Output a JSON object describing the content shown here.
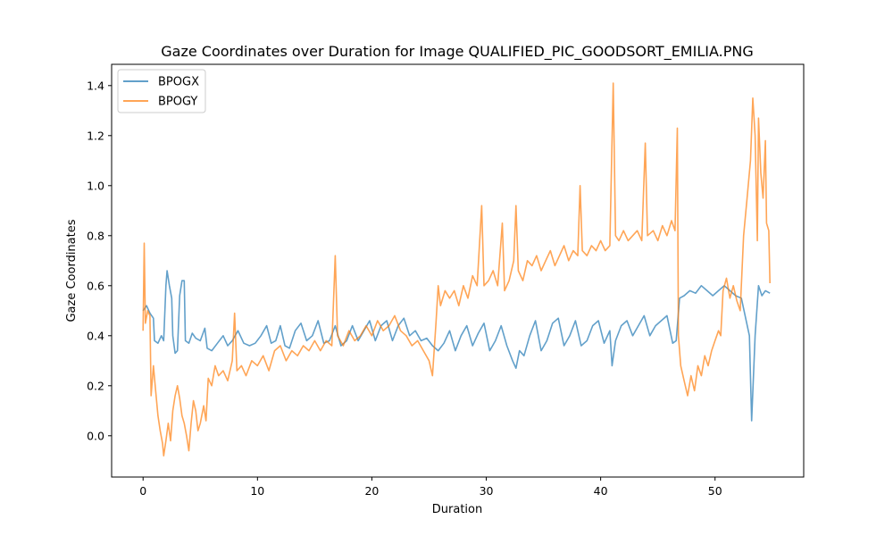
{
  "chart_data": {
    "type": "line",
    "title": "Gaze Coordinates over Duration for Image QUALIFIED_PIC_GOODSORT_EMILIA.PNG",
    "xlabel": "Duration",
    "ylabel": "Gaze Coordinates",
    "xlim": [
      -2.75,
      57.75
    ],
    "ylim": [
      -0.165,
      1.485
    ],
    "xticks": [
      0,
      10,
      20,
      30,
      40,
      50
    ],
    "yticks": [
      0.0,
      0.2,
      0.4,
      0.6,
      0.8,
      1.0,
      1.2,
      1.4
    ],
    "xtick_labels": [
      "0",
      "10",
      "20",
      "30",
      "40",
      "50"
    ],
    "ytick_labels": [
      "0.0",
      "0.2",
      "0.4",
      "0.6",
      "0.8",
      "1.0",
      "1.2",
      "1.4"
    ],
    "grid": false,
    "legend": "top-left",
    "series": [
      {
        "name": "BPOGX",
        "color": "#1f77b4",
        "points": [
          [
            0,
            0.5
          ],
          [
            0.3,
            0.52
          ],
          [
            0.6,
            0.49
          ],
          [
            0.9,
            0.47
          ],
          [
            1.0,
            0.38
          ],
          [
            1.3,
            0.37
          ],
          [
            1.6,
            0.4
          ],
          [
            1.8,
            0.38
          ],
          [
            2.0,
            0.6
          ],
          [
            2.1,
            0.66
          ],
          [
            2.3,
            0.6
          ],
          [
            2.5,
            0.55
          ],
          [
            2.6,
            0.4
          ],
          [
            2.8,
            0.33
          ],
          [
            3.0,
            0.34
          ],
          [
            3.2,
            0.56
          ],
          [
            3.4,
            0.62
          ],
          [
            3.6,
            0.62
          ],
          [
            3.7,
            0.38
          ],
          [
            4.0,
            0.37
          ],
          [
            4.3,
            0.41
          ],
          [
            4.6,
            0.39
          ],
          [
            5.0,
            0.38
          ],
          [
            5.4,
            0.43
          ],
          [
            5.6,
            0.35
          ],
          [
            6.0,
            0.34
          ],
          [
            6.5,
            0.37
          ],
          [
            7.0,
            0.4
          ],
          [
            7.4,
            0.36
          ],
          [
            7.8,
            0.38
          ],
          [
            8.3,
            0.42
          ],
          [
            8.8,
            0.37
          ],
          [
            9.3,
            0.36
          ],
          [
            9.8,
            0.37
          ],
          [
            10.3,
            0.4
          ],
          [
            10.8,
            0.44
          ],
          [
            11.2,
            0.37
          ],
          [
            11.6,
            0.38
          ],
          [
            12.0,
            0.44
          ],
          [
            12.4,
            0.36
          ],
          [
            12.8,
            0.35
          ],
          [
            13.3,
            0.42
          ],
          [
            13.8,
            0.45
          ],
          [
            14.3,
            0.38
          ],
          [
            14.8,
            0.4
          ],
          [
            15.3,
            0.46
          ],
          [
            15.8,
            0.37
          ],
          [
            16.3,
            0.38
          ],
          [
            16.8,
            0.44
          ],
          [
            17.3,
            0.36
          ],
          [
            17.8,
            0.38
          ],
          [
            18.3,
            0.44
          ],
          [
            18.8,
            0.38
          ],
          [
            19.3,
            0.42
          ],
          [
            19.8,
            0.46
          ],
          [
            20.3,
            0.38
          ],
          [
            20.8,
            0.44
          ],
          [
            21.3,
            0.46
          ],
          [
            21.8,
            0.38
          ],
          [
            22.3,
            0.44
          ],
          [
            22.8,
            0.47
          ],
          [
            23.3,
            0.4
          ],
          [
            23.8,
            0.42
          ],
          [
            24.3,
            0.38
          ],
          [
            24.8,
            0.39
          ],
          [
            25.3,
            0.36
          ],
          [
            25.8,
            0.34
          ],
          [
            26.3,
            0.37
          ],
          [
            26.8,
            0.42
          ],
          [
            27.3,
            0.34
          ],
          [
            27.8,
            0.4
          ],
          [
            28.3,
            0.44
          ],
          [
            28.8,
            0.36
          ],
          [
            29.3,
            0.41
          ],
          [
            29.8,
            0.45
          ],
          [
            30.3,
            0.34
          ],
          [
            30.8,
            0.38
          ],
          [
            31.3,
            0.44
          ],
          [
            31.8,
            0.36
          ],
          [
            32.3,
            0.3
          ],
          [
            32.6,
            0.27
          ],
          [
            32.9,
            0.34
          ],
          [
            33.3,
            0.32
          ],
          [
            33.8,
            0.4
          ],
          [
            34.3,
            0.46
          ],
          [
            34.8,
            0.34
          ],
          [
            35.3,
            0.38
          ],
          [
            35.8,
            0.45
          ],
          [
            36.3,
            0.47
          ],
          [
            36.8,
            0.36
          ],
          [
            37.3,
            0.4
          ],
          [
            37.8,
            0.46
          ],
          [
            38.3,
            0.36
          ],
          [
            38.8,
            0.38
          ],
          [
            39.3,
            0.44
          ],
          [
            39.8,
            0.46
          ],
          [
            40.3,
            0.37
          ],
          [
            40.8,
            0.42
          ],
          [
            41.0,
            0.28
          ],
          [
            41.3,
            0.38
          ],
          [
            41.8,
            0.44
          ],
          [
            42.3,
            0.46
          ],
          [
            42.8,
            0.4
          ],
          [
            43.3,
            0.44
          ],
          [
            43.8,
            0.48
          ],
          [
            44.3,
            0.4
          ],
          [
            44.8,
            0.44
          ],
          [
            45.3,
            0.46
          ],
          [
            45.8,
            0.48
          ],
          [
            46.3,
            0.37
          ],
          [
            46.6,
            0.38
          ],
          [
            46.9,
            0.55
          ],
          [
            47.3,
            0.56
          ],
          [
            47.8,
            0.58
          ],
          [
            48.3,
            0.57
          ],
          [
            48.8,
            0.6
          ],
          [
            49.3,
            0.58
          ],
          [
            49.8,
            0.56
          ],
          [
            50.3,
            0.58
          ],
          [
            50.8,
            0.6
          ],
          [
            51.3,
            0.58
          ],
          [
            51.8,
            0.56
          ],
          [
            52.3,
            0.55
          ],
          [
            53.0,
            0.4
          ],
          [
            53.2,
            0.06
          ],
          [
            53.5,
            0.4
          ],
          [
            53.8,
            0.6
          ],
          [
            54.1,
            0.56
          ],
          [
            54.4,
            0.58
          ],
          [
            54.8,
            0.57
          ]
        ]
      },
      {
        "name": "BPOGY",
        "color": "#ff7f0e",
        "points": [
          [
            0,
            0.42
          ],
          [
            0.1,
            0.77
          ],
          [
            0.2,
            0.45
          ],
          [
            0.4,
            0.5
          ],
          [
            0.6,
            0.48
          ],
          [
            0.7,
            0.16
          ],
          [
            0.9,
            0.28
          ],
          [
            1.1,
            0.18
          ],
          [
            1.3,
            0.08
          ],
          [
            1.5,
            0.02
          ],
          [
            1.7,
            -0.03
          ],
          [
            1.8,
            -0.08
          ],
          [
            2.0,
            -0.02
          ],
          [
            2.2,
            0.05
          ],
          [
            2.4,
            -0.02
          ],
          [
            2.6,
            0.1
          ],
          [
            2.8,
            0.16
          ],
          [
            3.0,
            0.2
          ],
          [
            3.2,
            0.15
          ],
          [
            3.4,
            0.08
          ],
          [
            3.6,
            0.05
          ],
          [
            3.8,
            0.0
          ],
          [
            4.0,
            -0.06
          ],
          [
            4.2,
            0.05
          ],
          [
            4.4,
            0.14
          ],
          [
            4.6,
            0.1
          ],
          [
            4.8,
            0.02
          ],
          [
            5.0,
            0.05
          ],
          [
            5.3,
            0.12
          ],
          [
            5.5,
            0.06
          ],
          [
            5.7,
            0.23
          ],
          [
            6.0,
            0.2
          ],
          [
            6.3,
            0.28
          ],
          [
            6.6,
            0.24
          ],
          [
            7.0,
            0.26
          ],
          [
            7.4,
            0.22
          ],
          [
            7.8,
            0.3
          ],
          [
            8.0,
            0.49
          ],
          [
            8.2,
            0.26
          ],
          [
            8.6,
            0.28
          ],
          [
            9.0,
            0.24
          ],
          [
            9.5,
            0.3
          ],
          [
            10.0,
            0.28
          ],
          [
            10.5,
            0.32
          ],
          [
            11.0,
            0.26
          ],
          [
            11.5,
            0.34
          ],
          [
            12.0,
            0.36
          ],
          [
            12.5,
            0.3
          ],
          [
            13.0,
            0.34
          ],
          [
            13.5,
            0.32
          ],
          [
            14.0,
            0.36
          ],
          [
            14.5,
            0.34
          ],
          [
            15.0,
            0.38
          ],
          [
            15.5,
            0.34
          ],
          [
            16.0,
            0.38
          ],
          [
            16.5,
            0.36
          ],
          [
            16.8,
            0.72
          ],
          [
            17.0,
            0.4
          ],
          [
            17.5,
            0.36
          ],
          [
            18.0,
            0.42
          ],
          [
            18.5,
            0.38
          ],
          [
            19.0,
            0.4
          ],
          [
            19.5,
            0.44
          ],
          [
            20.0,
            0.4
          ],
          [
            20.5,
            0.46
          ],
          [
            21.0,
            0.42
          ],
          [
            21.5,
            0.44
          ],
          [
            22.0,
            0.48
          ],
          [
            22.5,
            0.42
          ],
          [
            23.0,
            0.4
          ],
          [
            23.5,
            0.36
          ],
          [
            24.0,
            0.38
          ],
          [
            24.5,
            0.34
          ],
          [
            25.0,
            0.3
          ],
          [
            25.3,
            0.24
          ],
          [
            25.6,
            0.45
          ],
          [
            25.8,
            0.6
          ],
          [
            26.0,
            0.52
          ],
          [
            26.4,
            0.58
          ],
          [
            26.8,
            0.55
          ],
          [
            27.2,
            0.58
          ],
          [
            27.6,
            0.52
          ],
          [
            28.0,
            0.6
          ],
          [
            28.4,
            0.55
          ],
          [
            28.8,
            0.64
          ],
          [
            29.2,
            0.6
          ],
          [
            29.6,
            0.92
          ],
          [
            29.8,
            0.6
          ],
          [
            30.2,
            0.62
          ],
          [
            30.6,
            0.66
          ],
          [
            31.0,
            0.6
          ],
          [
            31.4,
            0.85
          ],
          [
            31.6,
            0.58
          ],
          [
            32.0,
            0.62
          ],
          [
            32.4,
            0.7
          ],
          [
            32.6,
            0.92
          ],
          [
            32.8,
            0.66
          ],
          [
            33.2,
            0.62
          ],
          [
            33.6,
            0.7
          ],
          [
            34.0,
            0.68
          ],
          [
            34.4,
            0.72
          ],
          [
            34.8,
            0.66
          ],
          [
            35.2,
            0.7
          ],
          [
            35.6,
            0.74
          ],
          [
            36.0,
            0.68
          ],
          [
            36.4,
            0.72
          ],
          [
            36.8,
            0.76
          ],
          [
            37.2,
            0.7
          ],
          [
            37.6,
            0.74
          ],
          [
            38.0,
            0.72
          ],
          [
            38.2,
            1.0
          ],
          [
            38.4,
            0.74
          ],
          [
            38.8,
            0.72
          ],
          [
            39.2,
            0.76
          ],
          [
            39.6,
            0.74
          ],
          [
            40.0,
            0.78
          ],
          [
            40.4,
            0.74
          ],
          [
            40.8,
            0.76
          ],
          [
            41.1,
            1.41
          ],
          [
            41.3,
            0.8
          ],
          [
            41.6,
            0.78
          ],
          [
            42.0,
            0.82
          ],
          [
            42.4,
            0.78
          ],
          [
            42.8,
            0.8
          ],
          [
            43.2,
            0.82
          ],
          [
            43.6,
            0.78
          ],
          [
            43.9,
            1.17
          ],
          [
            44.1,
            0.8
          ],
          [
            44.6,
            0.82
          ],
          [
            45.0,
            0.78
          ],
          [
            45.4,
            0.84
          ],
          [
            45.8,
            0.8
          ],
          [
            46.2,
            0.86
          ],
          [
            46.5,
            0.82
          ],
          [
            46.7,
            1.23
          ],
          [
            46.8,
            0.4
          ],
          [
            47.0,
            0.28
          ],
          [
            47.3,
            0.22
          ],
          [
            47.6,
            0.16
          ],
          [
            47.9,
            0.24
          ],
          [
            48.2,
            0.18
          ],
          [
            48.5,
            0.28
          ],
          [
            48.8,
            0.24
          ],
          [
            49.1,
            0.32
          ],
          [
            49.4,
            0.28
          ],
          [
            49.7,
            0.34
          ],
          [
            50.0,
            0.38
          ],
          [
            50.3,
            0.42
          ],
          [
            50.5,
            0.4
          ],
          [
            50.7,
            0.58
          ],
          [
            51.0,
            0.63
          ],
          [
            51.3,
            0.55
          ],
          [
            51.6,
            0.6
          ],
          [
            51.9,
            0.54
          ],
          [
            52.2,
            0.5
          ],
          [
            52.5,
            0.8
          ],
          [
            52.8,
            0.95
          ],
          [
            53.1,
            1.1
          ],
          [
            53.3,
            1.35
          ],
          [
            53.5,
            1.2
          ],
          [
            53.7,
            0.78
          ],
          [
            53.8,
            1.27
          ],
          [
            54.0,
            1.05
          ],
          [
            54.2,
            0.95
          ],
          [
            54.4,
            1.18
          ],
          [
            54.5,
            0.85
          ],
          [
            54.7,
            0.82
          ],
          [
            54.8,
            0.61
          ]
        ]
      }
    ]
  }
}
